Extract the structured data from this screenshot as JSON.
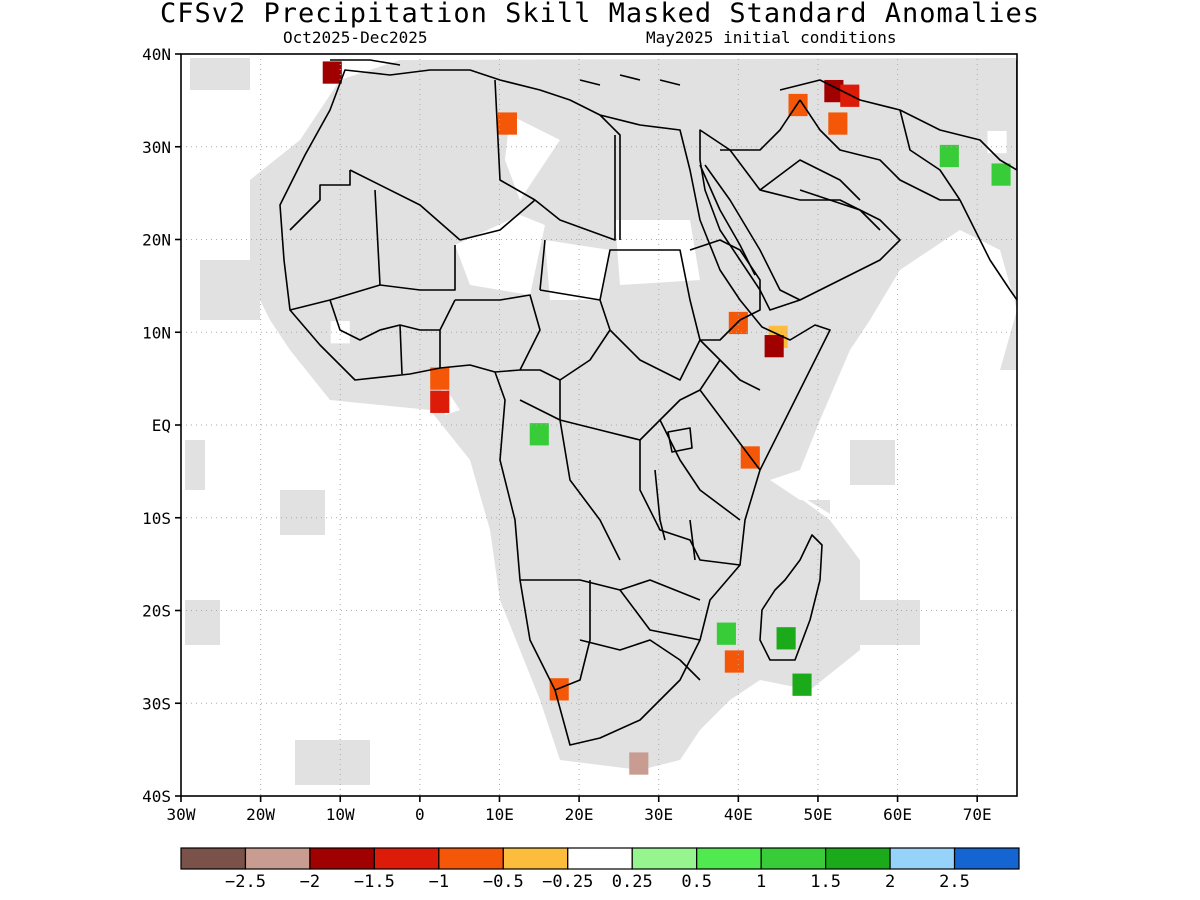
{
  "title": "CFSv2 Precipitation Skill Masked Standard Anomalies",
  "subtitle_left": "Oct2025-Dec2025",
  "subtitle_right": "May2025 initial conditions",
  "colors": {
    "mask_gray": "#e1e1e1",
    "border": "#000000",
    "grid": "#aaaaaa"
  },
  "map": {
    "lon_range": [
      -30,
      75
    ],
    "lat_range": [
      -40,
      40
    ],
    "lat_ticks": [
      {
        "value": 40,
        "label": "40N"
      },
      {
        "value": 30,
        "label": "30N"
      },
      {
        "value": 20,
        "label": "20N"
      },
      {
        "value": 10,
        "label": "10N"
      },
      {
        "value": 0,
        "label": "EQ"
      },
      {
        "value": -10,
        "label": "10S"
      },
      {
        "value": -20,
        "label": "20S"
      },
      {
        "value": -30,
        "label": "30S"
      },
      {
        "value": -40,
        "label": "40S"
      }
    ],
    "lon_ticks": [
      {
        "value": -30,
        "label": "30W"
      },
      {
        "value": -20,
        "label": "20W"
      },
      {
        "value": -10,
        "label": "10W"
      },
      {
        "value": 0,
        "label": "0"
      },
      {
        "value": 10,
        "label": "10E"
      },
      {
        "value": 20,
        "label": "20E"
      },
      {
        "value": 30,
        "label": "30E"
      },
      {
        "value": 40,
        "label": "40E"
      },
      {
        "value": 50,
        "label": "50E"
      },
      {
        "value": 60,
        "label": "60E"
      },
      {
        "value": 70,
        "label": "70E"
      }
    ],
    "anomaly_patches": [
      {
        "region": "southern-caspian-iran",
        "lon": 52,
        "lat": 36,
        "category": 2
      },
      {
        "region": "northern-iran",
        "lon": 54,
        "lat": 35.5,
        "category": 3
      },
      {
        "region": "central-iran",
        "lon": 52.5,
        "lat": 32.5,
        "category": 4
      },
      {
        "region": "western-iran",
        "lon": 47.5,
        "lat": 34.5,
        "category": 4
      },
      {
        "region": "morocco-coast",
        "lon": -11,
        "lat": 38,
        "category": 2
      },
      {
        "region": "algeria-small",
        "lon": 11,
        "lat": 32.5,
        "category": 4
      },
      {
        "region": "ethiopia-highlands",
        "lon": 40,
        "lat": 11,
        "category": 4
      },
      {
        "region": "djibouti-somaliland",
        "lon": 45,
        "lat": 9.5,
        "category": 5
      },
      {
        "region": "somaliland-north",
        "lon": 44.5,
        "lat": 8.5,
        "category": 2
      },
      {
        "region": "gulf-of-guinea",
        "lon": 2.5,
        "lat": 5,
        "category": 4
      },
      {
        "region": "gulf-of-guinea-south",
        "lon": 2.5,
        "lat": 2.5,
        "category": 3
      },
      {
        "region": "kenya-coast",
        "lon": 41.5,
        "lat": -3.5,
        "category": 4
      },
      {
        "region": "gabon-congo",
        "lon": 15,
        "lat": -1,
        "category": 9
      },
      {
        "region": "mozambique-channel",
        "lon": 38.5,
        "lat": -22.5,
        "category": 9
      },
      {
        "region": "mozambique-south",
        "lon": 39.5,
        "lat": -25.5,
        "category": 4
      },
      {
        "region": "southern-madagascar",
        "lon": 46,
        "lat": -23,
        "category": 10
      },
      {
        "region": "south-of-madagascar",
        "lon": 48,
        "lat": -28,
        "category": 10
      },
      {
        "region": "namibia-border",
        "lon": 17.5,
        "lat": -28.5,
        "category": 4
      },
      {
        "region": "south-africa-coast",
        "lon": 27.5,
        "lat": -36.5,
        "category": 1
      },
      {
        "region": "pakistan-north",
        "lon": 72.5,
        "lat": 30.5,
        "category": 6
      },
      {
        "region": "pakistan-east",
        "lon": 66.5,
        "lat": 29,
        "category": 9
      },
      {
        "region": "india-west",
        "lon": 73,
        "lat": 27,
        "category": 9
      },
      {
        "region": "senegal-small",
        "lon": -10,
        "lat": 10,
        "category": 6
      }
    ]
  },
  "colorbar": {
    "colors": [
      "#7a5249",
      "#c89c90",
      "#a00000",
      "#dc1b08",
      "#f45708",
      "#fcbd3c",
      "#ffffff",
      "#96f58e",
      "#50ea50",
      "#38cc38",
      "#1aaa1a",
      "#96d2fa",
      "#1464d2"
    ],
    "labels": [
      "-2.5",
      "-2",
      "-1.5",
      "-1",
      "-0.5",
      "-0.25",
      "0.25",
      "0.5",
      "1",
      "1.5",
      "2",
      "2.5"
    ]
  }
}
